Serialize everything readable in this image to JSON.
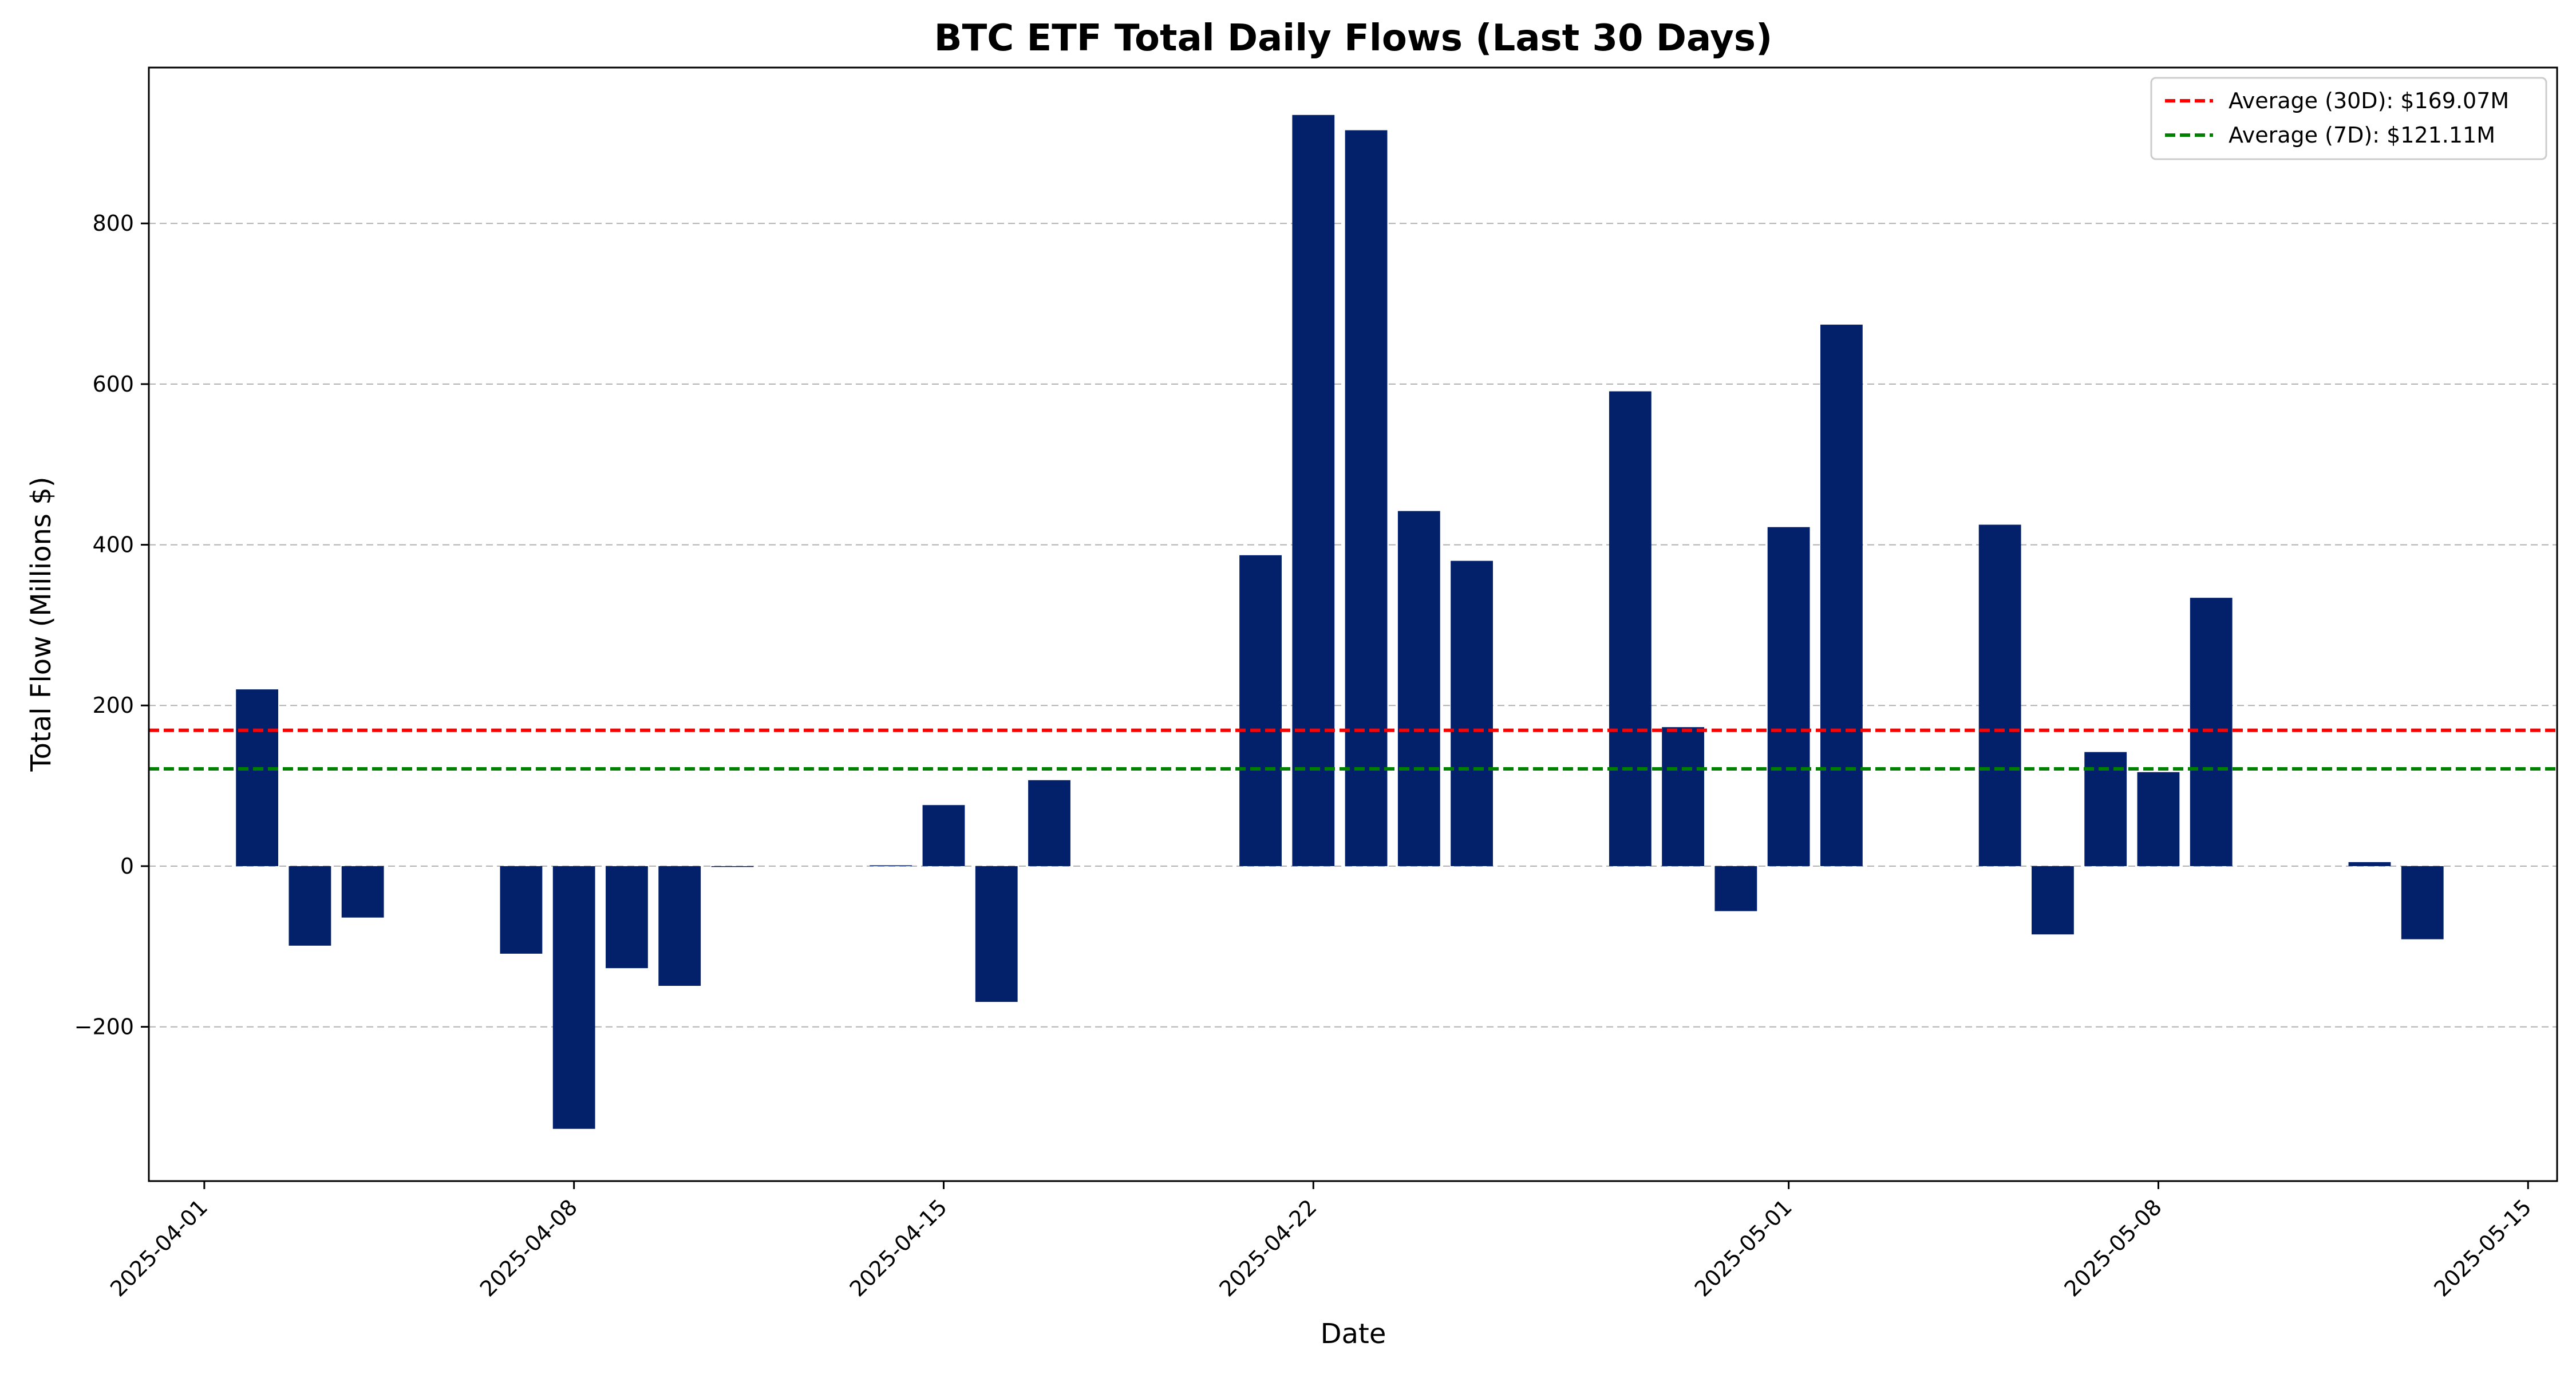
{
  "chart_data": {
    "type": "bar",
    "title": "BTC ETF Total Daily Flows (Last 30 Days)",
    "xlabel": "Date",
    "ylabel": "Total Flow (Millions $)",
    "ylim": [
      -392,
      994
    ],
    "grid": true,
    "legend_position": "top-right",
    "x_range_days": [
      -1.05,
      44.55
    ],
    "x_ticks": [
      {
        "day": 0,
        "label": "2025-04-01"
      },
      {
        "day": 7,
        "label": "2025-04-08"
      },
      {
        "day": 14,
        "label": "2025-04-15"
      },
      {
        "day": 21,
        "label": "2025-04-22"
      },
      {
        "day": 30,
        "label": "2025-05-01"
      },
      {
        "day": 37,
        "label": "2025-05-08"
      },
      {
        "day": 44,
        "label": "2025-05-15"
      }
    ],
    "y_ticks": [
      {
        "value": -200,
        "label": "−200"
      },
      {
        "value": 0,
        "label": "0"
      },
      {
        "value": 200,
        "label": "200"
      },
      {
        "value": 400,
        "label": "400"
      },
      {
        "value": 600,
        "label": "600"
      },
      {
        "value": 800,
        "label": "800"
      }
    ],
    "bar_color": "#02216a",
    "categories": [
      "2025-04-02",
      "2025-04-03",
      "2025-04-04",
      "2025-04-07",
      "2025-04-08",
      "2025-04-09",
      "2025-04-10",
      "2025-04-11",
      "2025-04-14",
      "2025-04-15",
      "2025-04-16",
      "2025-04-17",
      "2025-04-21",
      "2025-04-22",
      "2025-04-23",
      "2025-04-24",
      "2025-04-25",
      "2025-04-28",
      "2025-04-29",
      "2025-04-30",
      "2025-05-01",
      "2025-05-02",
      "2025-05-05",
      "2025-05-06",
      "2025-05-07",
      "2025-05-08",
      "2025-05-09",
      "2025-05-12",
      "2025-05-13"
    ],
    "days": [
      1,
      2,
      3,
      6,
      7,
      8,
      9,
      10,
      13,
      14,
      15,
      16,
      20,
      21,
      22,
      23,
      24,
      27,
      28,
      29,
      30,
      31,
      34,
      35,
      36,
      37,
      38,
      41,
      42
    ],
    "values": [
      220,
      -99,
      -64,
      -109,
      -327,
      -127,
      -149,
      -1,
      1,
      76,
      -169,
      107,
      387,
      935,
      916,
      442,
      380,
      591,
      173,
      -56,
      422,
      674,
      425,
      -85,
      142,
      117,
      334,
      5,
      -91
    ],
    "reference_lines": [
      {
        "label": "Average (30D): $169.07M",
        "value": 169.07,
        "color": "#ff0000"
      },
      {
        "label": "Average (7D): $121.11M",
        "value": 121.11,
        "color": "#008000"
      }
    ]
  }
}
